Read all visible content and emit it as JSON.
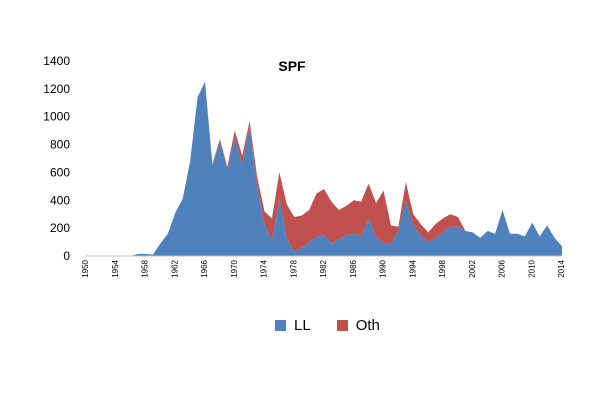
{
  "chart_data": {
    "type": "area",
    "stacked": true,
    "title": "SPF",
    "xlabel": "",
    "ylabel": "",
    "ylim": [
      0,
      1400
    ],
    "yticks": [
      0,
      200,
      400,
      600,
      800,
      1000,
      1200,
      1400
    ],
    "xticks": [
      1950,
      1954,
      1958,
      1962,
      1966,
      1970,
      1974,
      1978,
      1982,
      1986,
      1990,
      1994,
      1998,
      2002,
      2006,
      2010,
      2014
    ],
    "grid": false,
    "legend_position": "bottom",
    "x": [
      1950,
      1951,
      1952,
      1953,
      1954,
      1955,
      1956,
      1957,
      1958,
      1959,
      1960,
      1961,
      1962,
      1963,
      1964,
      1965,
      1966,
      1967,
      1968,
      1969,
      1970,
      1971,
      1972,
      1973,
      1974,
      1975,
      1976,
      1977,
      1978,
      1979,
      1980,
      1981,
      1982,
      1983,
      1984,
      1985,
      1986,
      1987,
      1988,
      1989,
      1990,
      1991,
      1992,
      1993,
      1994,
      1995,
      1996,
      1997,
      1998,
      1999,
      2000,
      2001,
      2002,
      2003,
      2004,
      2005,
      2006,
      2007,
      2008,
      2009,
      2010,
      2011,
      2012,
      2013,
      2014
    ],
    "series": [
      {
        "name": "LL",
        "color": "#4f81bd",
        "values": [
          0,
          0,
          0,
          0,
          0,
          0,
          0,
          15,
          15,
          10,
          90,
          160,
          310,
          410,
          680,
          1140,
          1250,
          650,
          820,
          620,
          850,
          660,
          930,
          500,
          230,
          110,
          410,
          130,
          30,
          60,
          100,
          140,
          150,
          90,
          120,
          150,
          160,
          140,
          270,
          140,
          90,
          90,
          180,
          400,
          220,
          150,
          100,
          130,
          170,
          210,
          210,
          180,
          170,
          130,
          180,
          160,
          330,
          160,
          160,
          140,
          240,
          140,
          220,
          130,
          70
        ]
      },
      {
        "name": "Oth",
        "color": "#c0504d",
        "values": [
          0,
          0,
          0,
          0,
          0,
          0,
          0,
          0,
          0,
          0,
          0,
          0,
          0,
          0,
          0,
          0,
          0,
          10,
          20,
          20,
          50,
          60,
          40,
          70,
          90,
          160,
          190,
          240,
          250,
          230,
          230,
          310,
          330,
          300,
          210,
          210,
          240,
          250,
          250,
          240,
          380,
          130,
          30,
          130,
          80,
          80,
          70,
          100,
          100,
          90,
          70,
          0,
          0,
          0,
          0,
          0,
          0,
          0,
          0,
          0,
          0,
          0,
          0,
          0,
          0
        ]
      }
    ]
  }
}
